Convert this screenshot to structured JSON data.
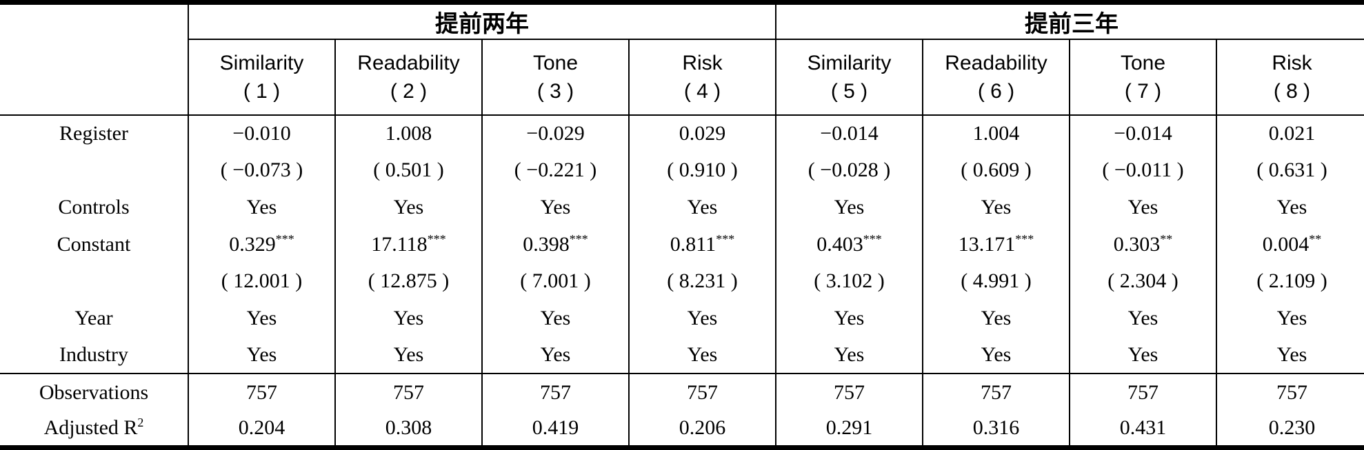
{
  "table": {
    "group_headers": [
      {
        "label": "提前两年"
      },
      {
        "label": "提前三年"
      }
    ],
    "column_headers": [
      {
        "name": "Similarity",
        "num": "( 1 )"
      },
      {
        "name": "Readability",
        "num": "( 2 )"
      },
      {
        "name": "Tone",
        "num": "( 3 )"
      },
      {
        "name": "Risk",
        "num": "( 4 )"
      },
      {
        "name": "Similarity",
        "num": "( 5 )"
      },
      {
        "name": "Readability",
        "num": "( 6 )"
      },
      {
        "name": "Tone",
        "num": "( 7 )"
      },
      {
        "name": "Risk",
        "num": "( 8 )"
      }
    ],
    "rows": [
      {
        "label": "Register",
        "cells": [
          {
            "v": "−0.010"
          },
          {
            "v": "1.008"
          },
          {
            "v": "−0.029"
          },
          {
            "v": "0.029"
          },
          {
            "v": "−0.014"
          },
          {
            "v": "1.004"
          },
          {
            "v": "−0.014"
          },
          {
            "v": "0.021"
          }
        ]
      },
      {
        "label": "",
        "cells": [
          {
            "v": "( −0.073 )"
          },
          {
            "v": "( 0.501 )"
          },
          {
            "v": "( −0.221 )"
          },
          {
            "v": "( 0.910 )"
          },
          {
            "v": "( −0.028 )"
          },
          {
            "v": "( 0.609 )"
          },
          {
            "v": "( −0.011 )"
          },
          {
            "v": "( 0.631 )"
          }
        ]
      },
      {
        "label": "Controls",
        "cells": [
          {
            "v": "Yes"
          },
          {
            "v": "Yes"
          },
          {
            "v": "Yes"
          },
          {
            "v": "Yes"
          },
          {
            "v": "Yes"
          },
          {
            "v": "Yes"
          },
          {
            "v": "Yes"
          },
          {
            "v": "Yes"
          }
        ]
      },
      {
        "label": "Constant",
        "cells": [
          {
            "v": "0.329",
            "sup": "***"
          },
          {
            "v": "17.118",
            "sup": "***"
          },
          {
            "v": "0.398",
            "sup": "***"
          },
          {
            "v": "0.811",
            "sup": "***"
          },
          {
            "v": "0.403",
            "sup": "***"
          },
          {
            "v": "13.171",
            "sup": "***"
          },
          {
            "v": "0.303",
            "sup": "**"
          },
          {
            "v": "0.004",
            "sup": "**"
          }
        ]
      },
      {
        "label": "",
        "cells": [
          {
            "v": "( 12.001 )"
          },
          {
            "v": "( 12.875 )"
          },
          {
            "v": "( 7.001 )"
          },
          {
            "v": "( 8.231 )"
          },
          {
            "v": "( 3.102 )"
          },
          {
            "v": "( 4.991 )"
          },
          {
            "v": "( 2.304 )"
          },
          {
            "v": "( 2.109 )"
          }
        ]
      },
      {
        "label": "Year",
        "cells": [
          {
            "v": "Yes"
          },
          {
            "v": "Yes"
          },
          {
            "v": "Yes"
          },
          {
            "v": "Yes"
          },
          {
            "v": "Yes"
          },
          {
            "v": "Yes"
          },
          {
            "v": "Yes"
          },
          {
            "v": "Yes"
          }
        ]
      },
      {
        "label": "Industry",
        "section_end": true,
        "cells": [
          {
            "v": "Yes"
          },
          {
            "v": "Yes"
          },
          {
            "v": "Yes"
          },
          {
            "v": "Yes"
          },
          {
            "v": "Yes"
          },
          {
            "v": "Yes"
          },
          {
            "v": "Yes"
          },
          {
            "v": "Yes"
          }
        ]
      },
      {
        "label": "Observations",
        "cells": [
          {
            "v": "757"
          },
          {
            "v": "757"
          },
          {
            "v": "757"
          },
          {
            "v": "757"
          },
          {
            "v": "757"
          },
          {
            "v": "757"
          },
          {
            "v": "757"
          },
          {
            "v": "757"
          }
        ]
      },
      {
        "label": "Adjusted R",
        "label_sup": "2",
        "cells": [
          {
            "v": "0.204"
          },
          {
            "v": "0.308"
          },
          {
            "v": "0.419"
          },
          {
            "v": "0.206"
          },
          {
            "v": "0.291"
          },
          {
            "v": "0.316"
          },
          {
            "v": "0.431"
          },
          {
            "v": "0.230"
          }
        ]
      }
    ]
  }
}
